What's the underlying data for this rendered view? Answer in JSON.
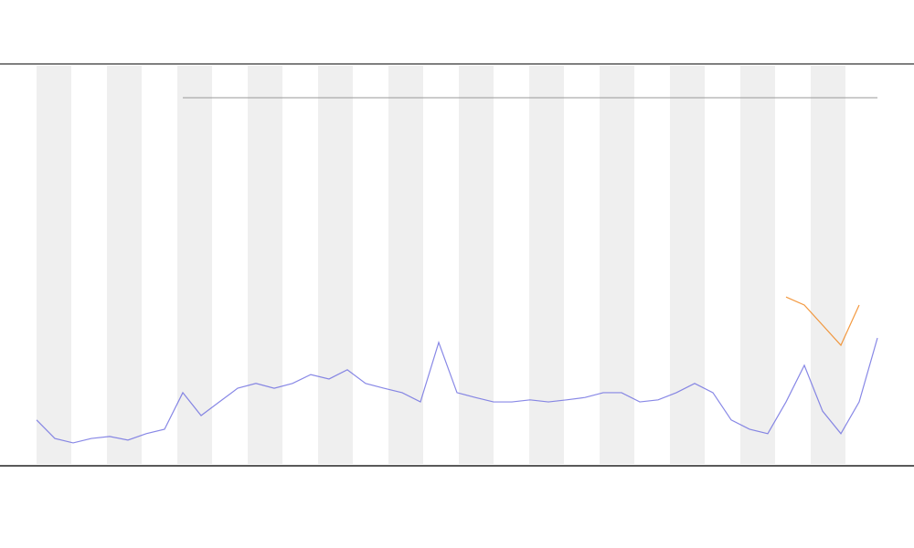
{
  "chart_data": {
    "type": "line",
    "ylim": [
      0,
      100
    ],
    "series": [
      {
        "color": "#6a6ae0",
        "values": [
          11.4,
          6.8,
          5.7,
          6.8,
          7.3,
          6.4,
          8,
          9.1,
          18.2,
          12.5,
          15.9,
          19.3,
          20.5,
          19.3,
          20.5,
          22.7,
          21.6,
          23.9,
          20.5,
          19.3,
          18.2,
          15.9,
          30.7,
          18.2,
          17,
          15.9,
          15.9,
          16.4,
          15.9,
          16.4,
          17,
          18.2,
          18.2,
          15.9,
          16.4,
          18.2,
          20.5,
          18.2,
          11.4,
          9.1,
          8,
          15.9,
          25,
          13.6,
          8,
          15.9,
          31.8
        ]
      },
      {
        "color": "#f08010",
        "values": [
          null,
          null,
          null,
          null,
          null,
          null,
          null,
          null,
          null,
          null,
          null,
          null,
          null,
          null,
          null,
          null,
          null,
          null,
          null,
          null,
          null,
          null,
          null,
          null,
          null,
          null,
          null,
          null,
          null,
          null,
          null,
          null,
          null,
          null,
          null,
          null,
          null,
          null,
          null,
          null,
          null,
          42,
          40,
          35,
          30,
          40,
          null
        ]
      }
    ]
  }
}
